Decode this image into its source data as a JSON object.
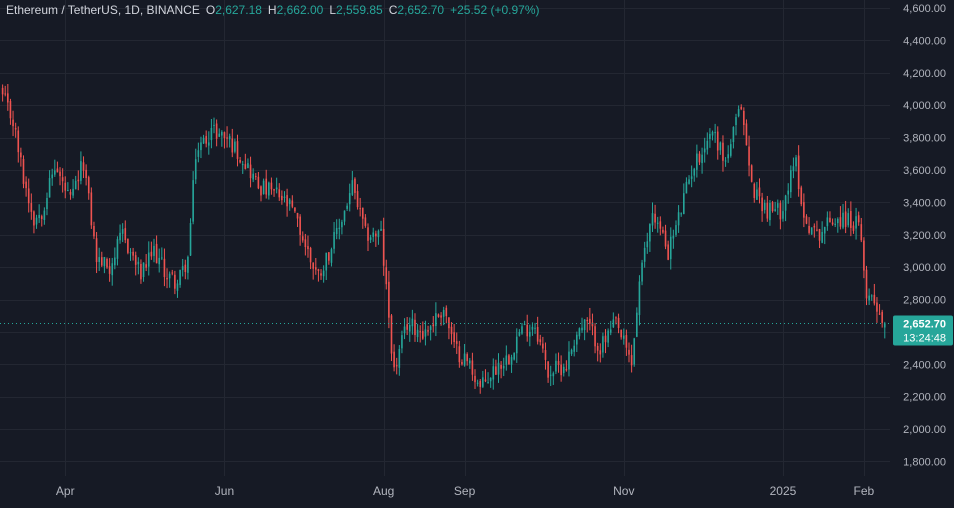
{
  "legend": {
    "symbol": "Ethereum / TetherUS, 1D, BINANCE",
    "o_label": "O",
    "o_value": "2,627.18",
    "h_label": "H",
    "h_value": "2,662.00",
    "l_label": "L",
    "l_value": "2,559.85",
    "c_label": "C",
    "c_value": "2,652.70",
    "change": "+25.52 (+0.97%)"
  },
  "price_badge": {
    "price": "2,652.70",
    "countdown": "13:24:48"
  },
  "colors": {
    "background": "#161a25",
    "grid": "#232732",
    "up": "#26a69a",
    "down": "#ef5350",
    "axis_text": "#b2b5be",
    "badge": "#26a69a"
  },
  "chart_data": {
    "type": "candlestick",
    "y_ticks": [
      "1,800.00",
      "2,000.00",
      "2,200.00",
      "2,400.00",
      "2,600.00",
      "2,800.00",
      "3,000.00",
      "3,200.00",
      "3,400.00",
      "3,600.00",
      "3,800.00",
      "4,000.00",
      "4,200.00",
      "4,400.00",
      "4,600.00"
    ],
    "y_tick_values": [
      1800,
      2000,
      2200,
      2400,
      2600,
      2800,
      3000,
      3200,
      3400,
      3600,
      3800,
      4000,
      4200,
      4400,
      4600
    ],
    "ylim": [
      1710,
      4650
    ],
    "xlim": [
      "2024-03-07",
      "2025-02-11"
    ],
    "x_ticks": [
      {
        "label": "Apr",
        "date": "2024-04-01"
      },
      {
        "label": "Jun",
        "date": "2024-06-01"
      },
      {
        "label": "Aug",
        "date": "2024-08-01"
      },
      {
        "label": "Sep",
        "date": "2024-09-01"
      },
      {
        "label": "Nov",
        "date": "2024-11-01"
      },
      {
        "label": "2025",
        "date": "2025-01-01"
      },
      {
        "label": "Feb",
        "date": "2025-02-01"
      }
    ],
    "last_price": 2652.7,
    "start_date": "2024-03-08",
    "close_path": [
      [
        "2024-03-08",
        4050
      ],
      [
        "2024-03-12",
        3900
      ],
      [
        "2024-03-16",
        3550
      ],
      [
        "2024-03-20",
        3300
      ],
      [
        "2024-03-23",
        3350
      ],
      [
        "2024-03-28",
        3620
      ],
      [
        "2024-04-03",
        3400
      ],
      [
        "2024-04-08",
        3650
      ],
      [
        "2024-04-13",
        3050
      ],
      [
        "2024-04-18",
        3000
      ],
      [
        "2024-04-23",
        3200
      ],
      [
        "2024-04-30",
        2950
      ],
      [
        "2024-05-05",
        3100
      ],
      [
        "2024-05-10",
        2950
      ],
      [
        "2024-05-14",
        2900
      ],
      [
        "2024-05-18",
        3050
      ],
      [
        "2024-05-21",
        3700
      ],
      [
        "2024-05-27",
        3850
      ],
      [
        "2024-06-02",
        3800
      ],
      [
        "2024-06-09",
        3650
      ],
      [
        "2024-06-14",
        3500
      ],
      [
        "2024-06-21",
        3450
      ],
      [
        "2024-06-27",
        3350
      ],
      [
        "2024-07-04",
        3050
      ],
      [
        "2024-07-07",
        2950
      ],
      [
        "2024-07-14",
        3200
      ],
      [
        "2024-07-20",
        3500
      ],
      [
        "2024-07-25",
        3200
      ],
      [
        "2024-07-31",
        3200
      ],
      [
        "2024-08-05",
        2350
      ],
      [
        "2024-08-10",
        2650
      ],
      [
        "2024-08-17",
        2600
      ],
      [
        "2024-08-24",
        2750
      ],
      [
        "2024-08-28",
        2500
      ],
      [
        "2024-09-03",
        2400
      ],
      [
        "2024-09-07",
        2250
      ],
      [
        "2024-09-14",
        2400
      ],
      [
        "2024-09-18",
        2450
      ],
      [
        "2024-09-22",
        2600
      ],
      [
        "2024-09-28",
        2650
      ],
      [
        "2024-10-03",
        2350
      ],
      [
        "2024-10-10",
        2400
      ],
      [
        "2024-10-14",
        2600
      ],
      [
        "2024-10-18",
        2650
      ],
      [
        "2024-10-23",
        2500
      ],
      [
        "2024-10-29",
        2650
      ],
      [
        "2024-11-04",
        2400
      ],
      [
        "2024-11-07",
        2900
      ],
      [
        "2024-11-12",
        3350
      ],
      [
        "2024-11-18",
        3100
      ],
      [
        "2024-11-22",
        3300
      ],
      [
        "2024-11-27",
        3600
      ],
      [
        "2024-12-05",
        3850
      ],
      [
        "2024-12-10",
        3650
      ],
      [
        "2024-12-16",
        4000
      ],
      [
        "2024-12-20",
        3500
      ],
      [
        "2024-12-26",
        3350
      ],
      [
        "2024-12-31",
        3350
      ],
      [
        "2025-01-06",
        3650
      ],
      [
        "2025-01-09",
        3300
      ],
      [
        "2025-01-14",
        3200
      ],
      [
        "2025-01-20",
        3300
      ],
      [
        "2025-01-25",
        3300
      ],
      [
        "2025-01-30",
        3250
      ],
      [
        "2025-02-02",
        2850
      ],
      [
        "2025-02-05",
        2800
      ],
      [
        "2025-02-09",
        2652.7
      ]
    ]
  }
}
